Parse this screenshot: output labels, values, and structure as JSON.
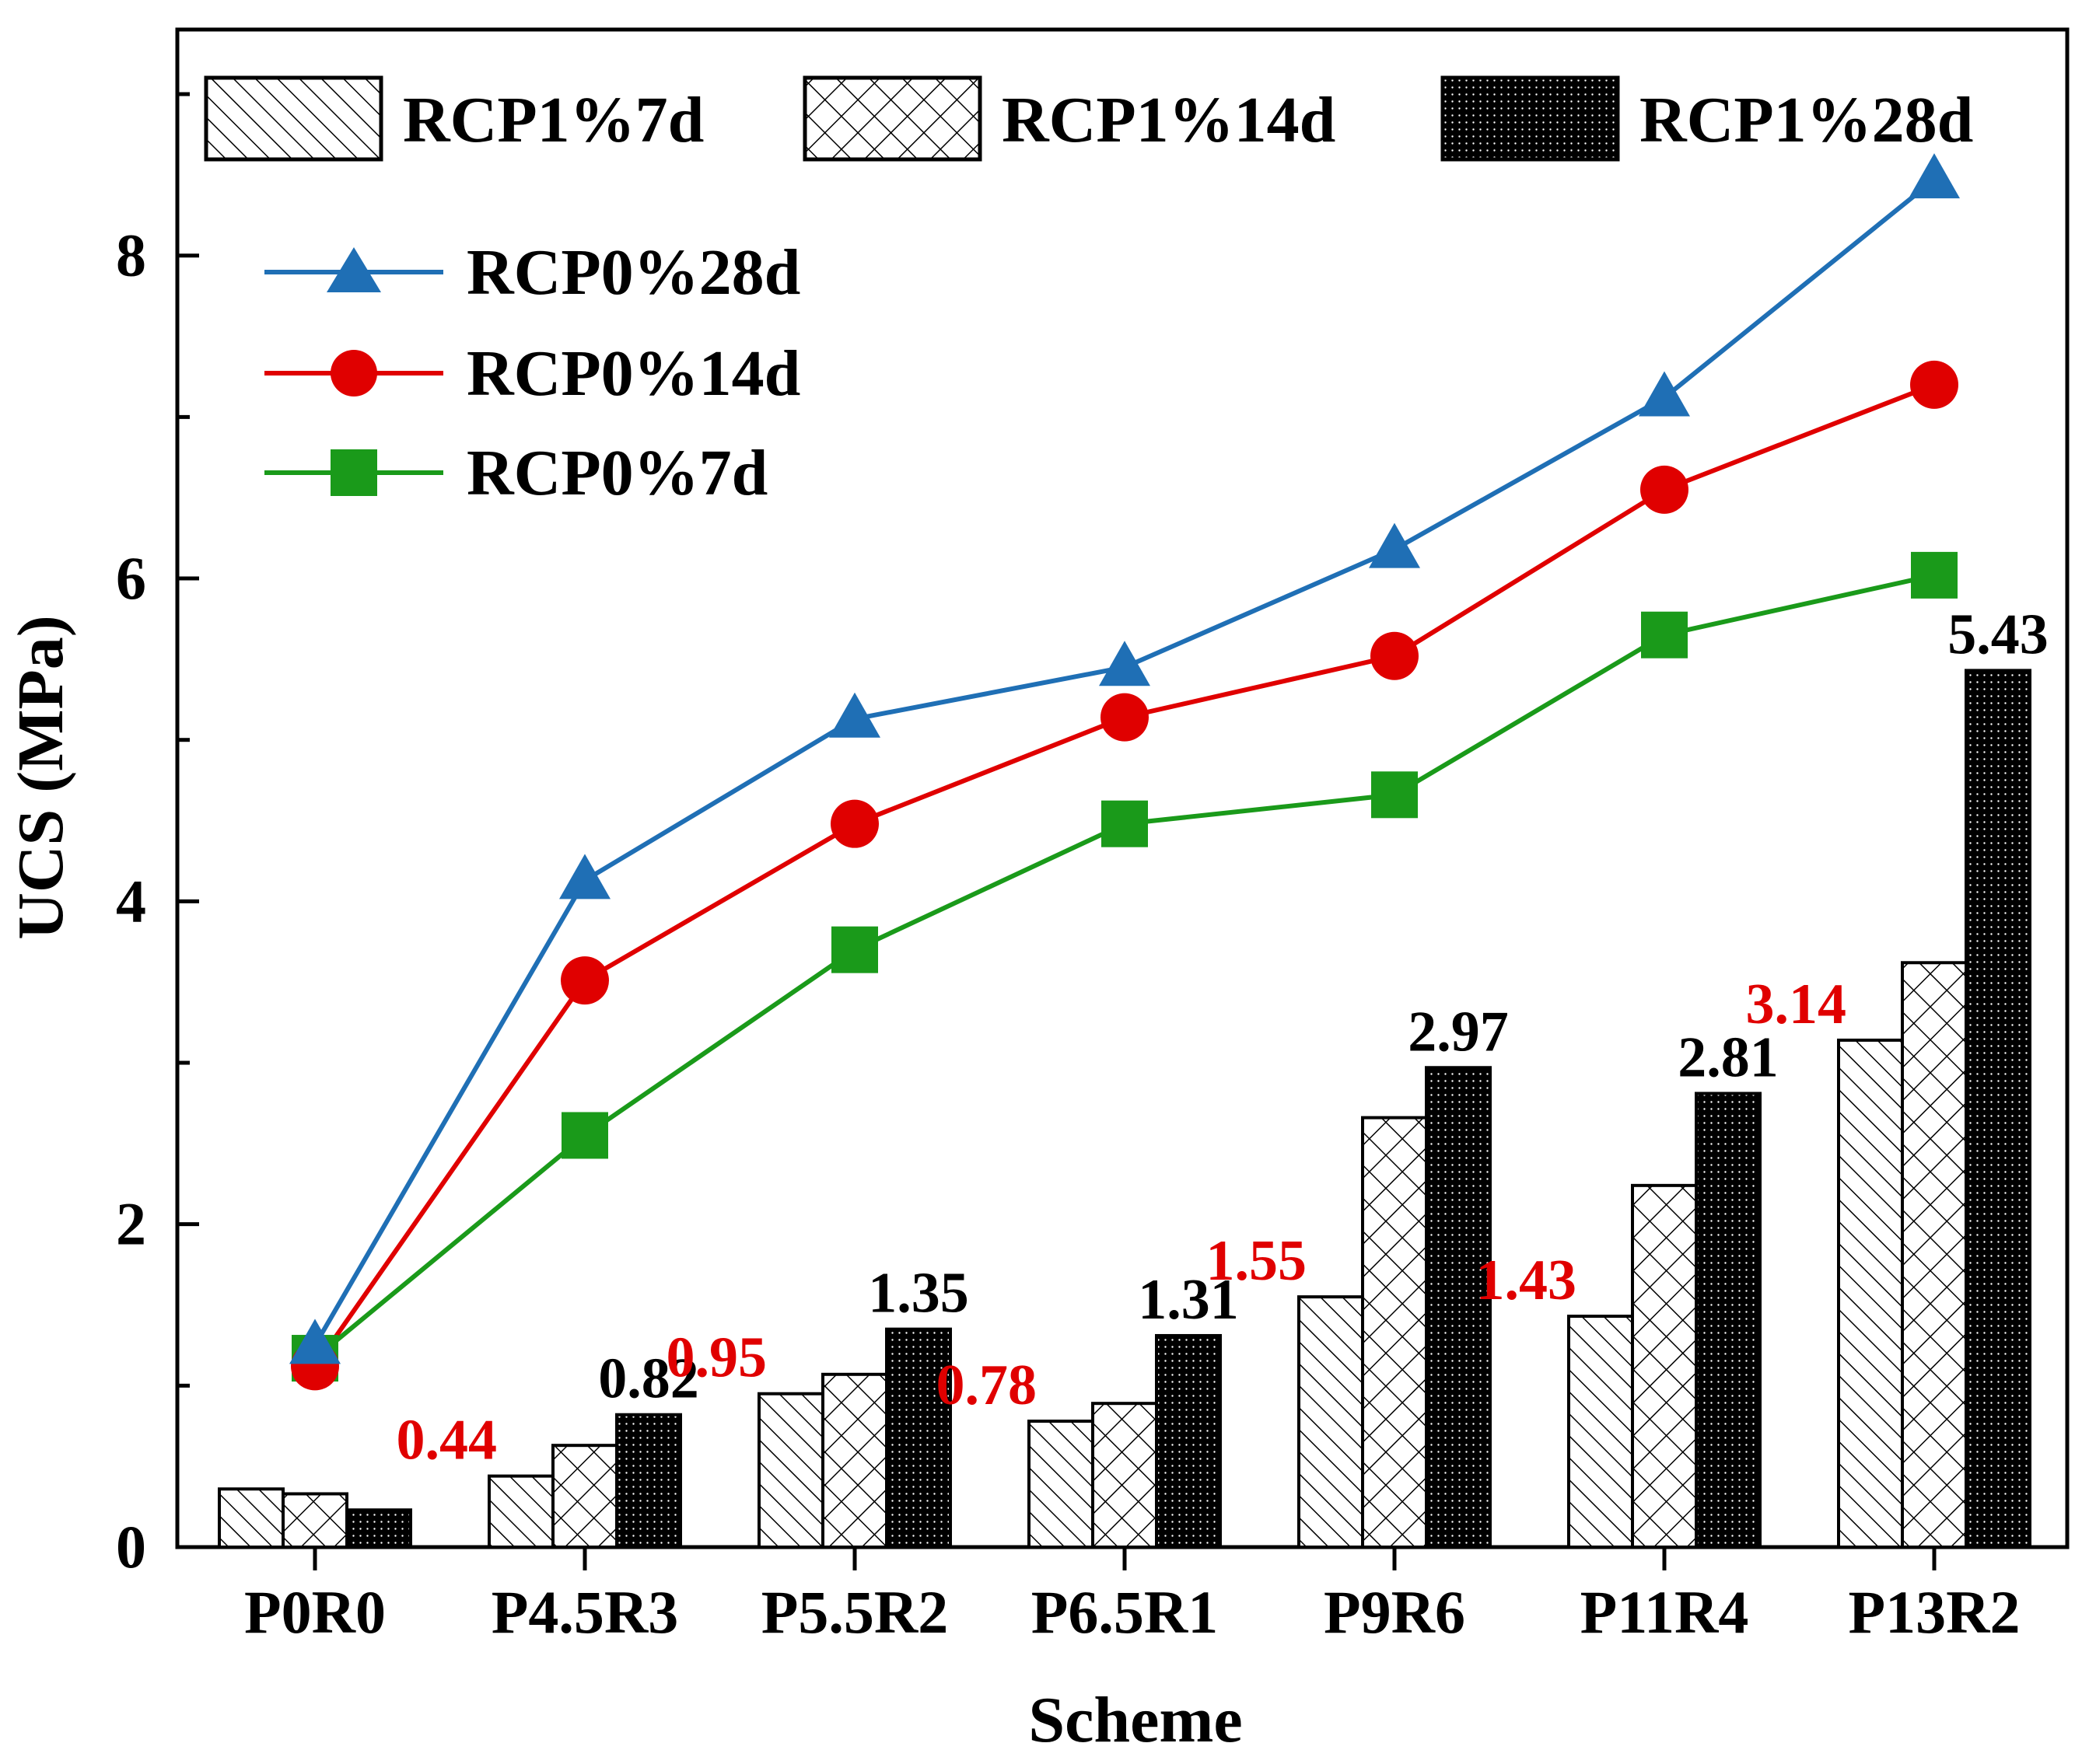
{
  "chart_data": {
    "type": "bar+line",
    "xlabel": "Scheme",
    "ylabel": "UCS (MPa)",
    "ylim": [
      0,
      9.4
    ],
    "yticks": [
      0,
      2,
      4,
      6,
      8
    ],
    "ytick_labels": [
      "0",
      "2",
      "4",
      "6",
      "8"
    ],
    "categories": [
      "P0R0",
      "P4.5R3",
      "P5.5R2",
      "P6.5R1",
      "P9R6",
      "P11R4",
      "P13R2"
    ],
    "bar_series": [
      {
        "name": "RCP1%7d",
        "pattern": "diagonal-hatch",
        "values": [
          0.36,
          0.44,
          0.95,
          0.78,
          1.55,
          1.43,
          3.14
        ]
      },
      {
        "name": "RCP1%14d",
        "pattern": "cross-hatch",
        "values": [
          0.33,
          0.63,
          1.07,
          0.89,
          2.66,
          2.24,
          3.62
        ]
      },
      {
        "name": "RCP1%28d",
        "pattern": "dense-dots",
        "values": [
          0.23,
          0.82,
          1.35,
          1.31,
          2.97,
          2.81,
          5.43
        ]
      }
    ],
    "line_series": [
      {
        "name": "RCP0%28d",
        "color": "#1f6fb5",
        "marker": "triangle",
        "values": [
          1.25,
          4.13,
          5.13,
          5.45,
          6.18,
          7.12,
          8.47
        ]
      },
      {
        "name": "RCP0%14d",
        "color": "#e00000",
        "marker": "circle",
        "values": [
          1.12,
          3.51,
          4.48,
          5.14,
          5.52,
          6.55,
          7.2
        ]
      },
      {
        "name": "RCP0%7d",
        "color": "#1a9a1a",
        "marker": "square",
        "values": [
          1.17,
          2.55,
          3.7,
          4.48,
          4.66,
          5.65,
          6.02
        ]
      }
    ],
    "data_labels": [
      {
        "category": "P4.5R3",
        "series": "RCP1%7d",
        "text": "0.44",
        "color": "#e00000"
      },
      {
        "category": "P4.5R3",
        "series": "RCP1%28d",
        "text": "0.82",
        "color": "#000000"
      },
      {
        "category": "P5.5R2",
        "series": "RCP1%7d",
        "text": "0.95",
        "color": "#e00000"
      },
      {
        "category": "P5.5R2",
        "series": "RCP1%28d",
        "text": "1.35",
        "color": "#000000"
      },
      {
        "category": "P6.5R1",
        "series": "RCP1%7d",
        "text": "0.78",
        "color": "#e00000"
      },
      {
        "category": "P6.5R1",
        "series": "RCP1%28d",
        "text": "1.31",
        "color": "#000000"
      },
      {
        "category": "P9R6",
        "series": "RCP1%7d",
        "text": "1.55",
        "color": "#e00000"
      },
      {
        "category": "P9R6",
        "series": "RCP1%28d",
        "text": "2.97",
        "color": "#000000"
      },
      {
        "category": "P11R4",
        "series": "RCP1%7d",
        "text": "1.43",
        "color": "#e00000"
      },
      {
        "category": "P11R4",
        "series": "RCP1%28d",
        "text": "2.81",
        "color": "#000000"
      },
      {
        "category": "P13R2",
        "series": "RCP1%7d",
        "text": "3.14",
        "color": "#e00000"
      },
      {
        "category": "P13R2",
        "series": "RCP1%28d",
        "text": "5.43",
        "color": "#000000"
      }
    ],
    "legend_bars": [
      "RCP1%7d",
      "RCP1%14d",
      "RCP1%28d"
    ],
    "legend_lines": [
      "RCP0%28d",
      "RCP0%14d",
      "RCP0%7d"
    ],
    "legend_placement": "top"
  }
}
